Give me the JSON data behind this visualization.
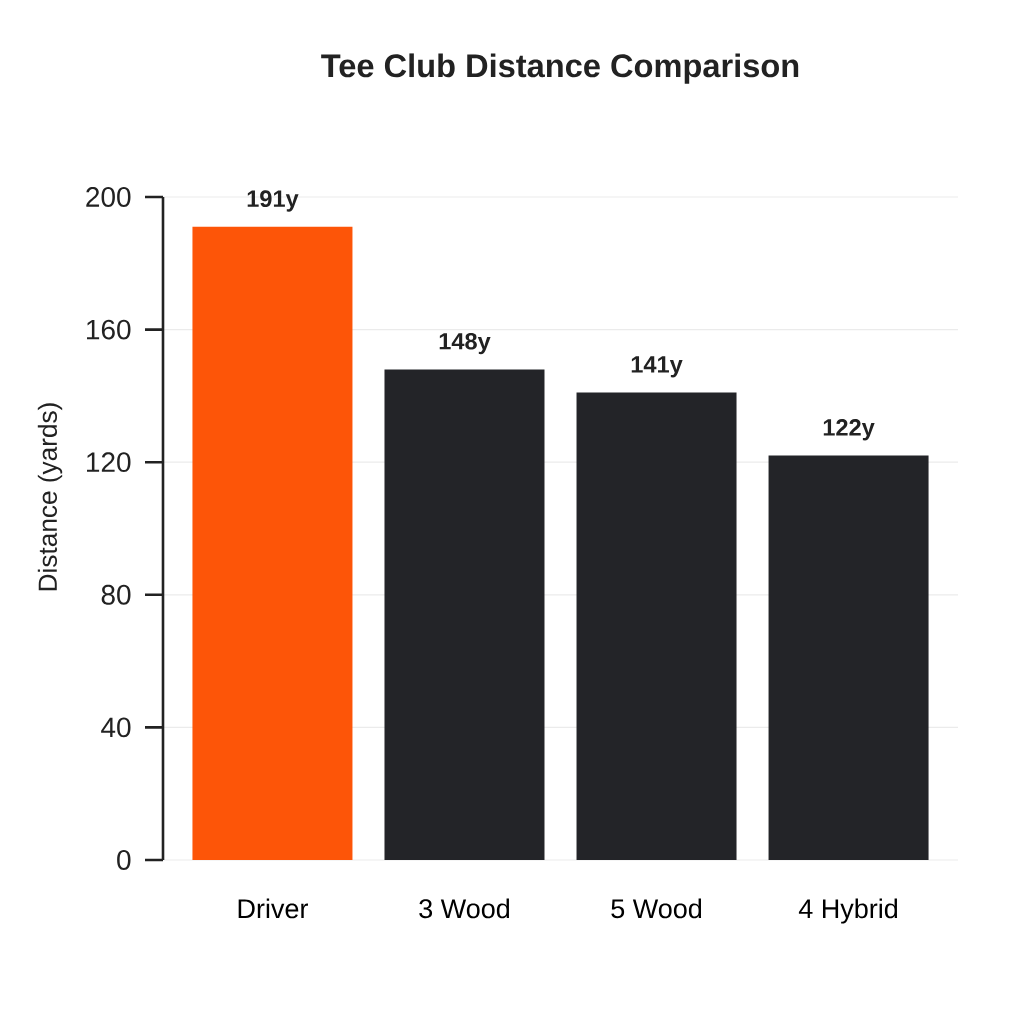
{
  "chart_data": {
    "type": "bar",
    "title": "Tee Club Distance Comparison",
    "ylabel": "Distance (yards)",
    "categories": [
      "Driver",
      "3 Wood",
      "5 Wood",
      "4 Hybrid"
    ],
    "values": [
      191,
      148,
      141,
      122
    ],
    "colors": [
      "#fd5508",
      "#232428",
      "#232428",
      "#232428"
    ],
    "value_labels": [
      "191y",
      "148y",
      "141y",
      "122y"
    ],
    "ylim": [
      0,
      200
    ],
    "yticks": [
      0,
      40,
      80,
      120,
      160,
      200
    ],
    "grid": "y"
  }
}
